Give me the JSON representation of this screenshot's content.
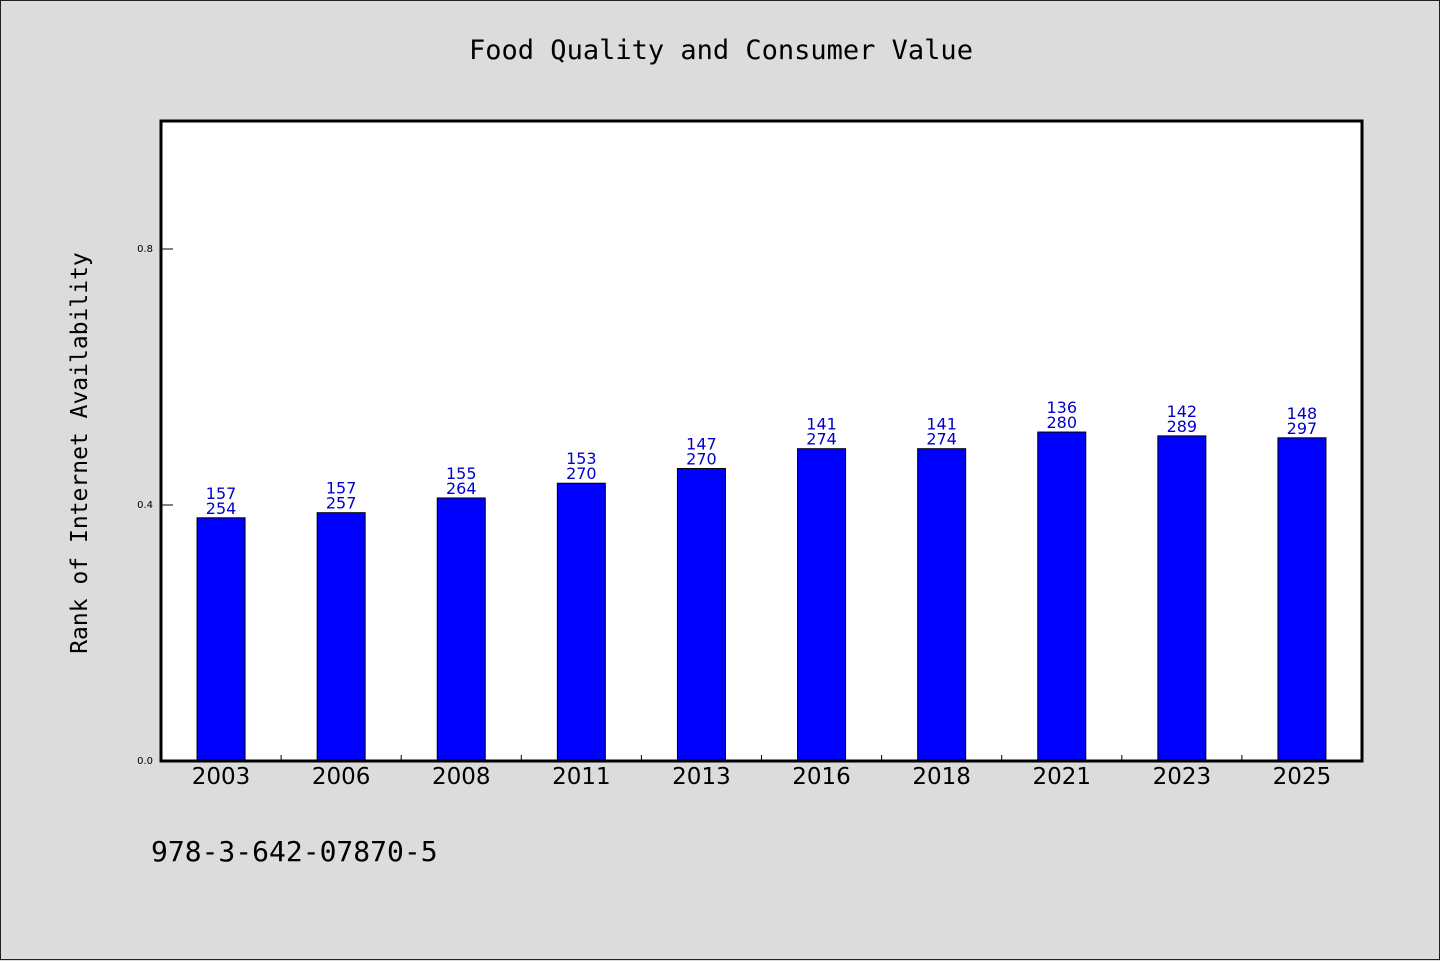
{
  "colors": {
    "background": "#dcdcdc",
    "plot_background": "#ffffff",
    "bar": "#0000ff",
    "bar_label": "#0000cc"
  },
  "footer": {
    "isbn": "978-3-642-07870-5"
  },
  "chart_data": {
    "type": "bar",
    "title": "Food Quality and Consumer Value",
    "xlabel": "",
    "ylabel": "Rank of Internet Availability",
    "ylim": [
      0,
      1
    ],
    "yticks": [
      "0.0",
      "0.4",
      "0.8"
    ],
    "grid": false,
    "categories": [
      "2003",
      "2006",
      "2008",
      "2011",
      "2013",
      "2016",
      "2018",
      "2021",
      "2023",
      "2025"
    ],
    "values": [
      0.38,
      0.388,
      0.411,
      0.434,
      0.457,
      0.488,
      0.488,
      0.514,
      0.508,
      0.505
    ],
    "labels_top": [
      "157",
      "157",
      "155",
      "153",
      "147",
      "141",
      "141",
      "136",
      "142",
      "148"
    ],
    "labels_bottom": [
      "254",
      "257",
      "264",
      "270",
      "270",
      "274",
      "274",
      "280",
      "289",
      "297"
    ]
  }
}
